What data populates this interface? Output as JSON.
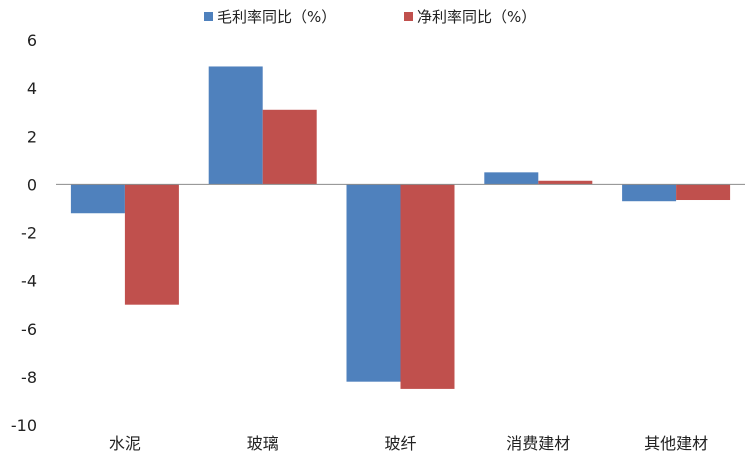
{
  "chart_data": {
    "type": "bar",
    "title": "",
    "xlabel": "",
    "ylabel": "",
    "categories": [
      "水泥",
      "玻璃",
      "玻纤",
      "消费建材",
      "其他建材"
    ],
    "series": [
      {
        "name": "毛利率同比（%）",
        "color": "#4f81bd",
        "values": [
          -1.2,
          4.9,
          -8.2,
          0.5,
          -0.7
        ]
      },
      {
        "name": "净利率同比（%）",
        "color": "#c0504d",
        "values": [
          -5.0,
          3.1,
          -8.5,
          0.15,
          -0.65
        ]
      }
    ],
    "ylim": [
      -10,
      6
    ],
    "yticks": [
      6,
      4,
      2,
      0,
      -2,
      -4,
      -6,
      -8,
      -10
    ],
    "grid": false,
    "legend_position": "top"
  }
}
